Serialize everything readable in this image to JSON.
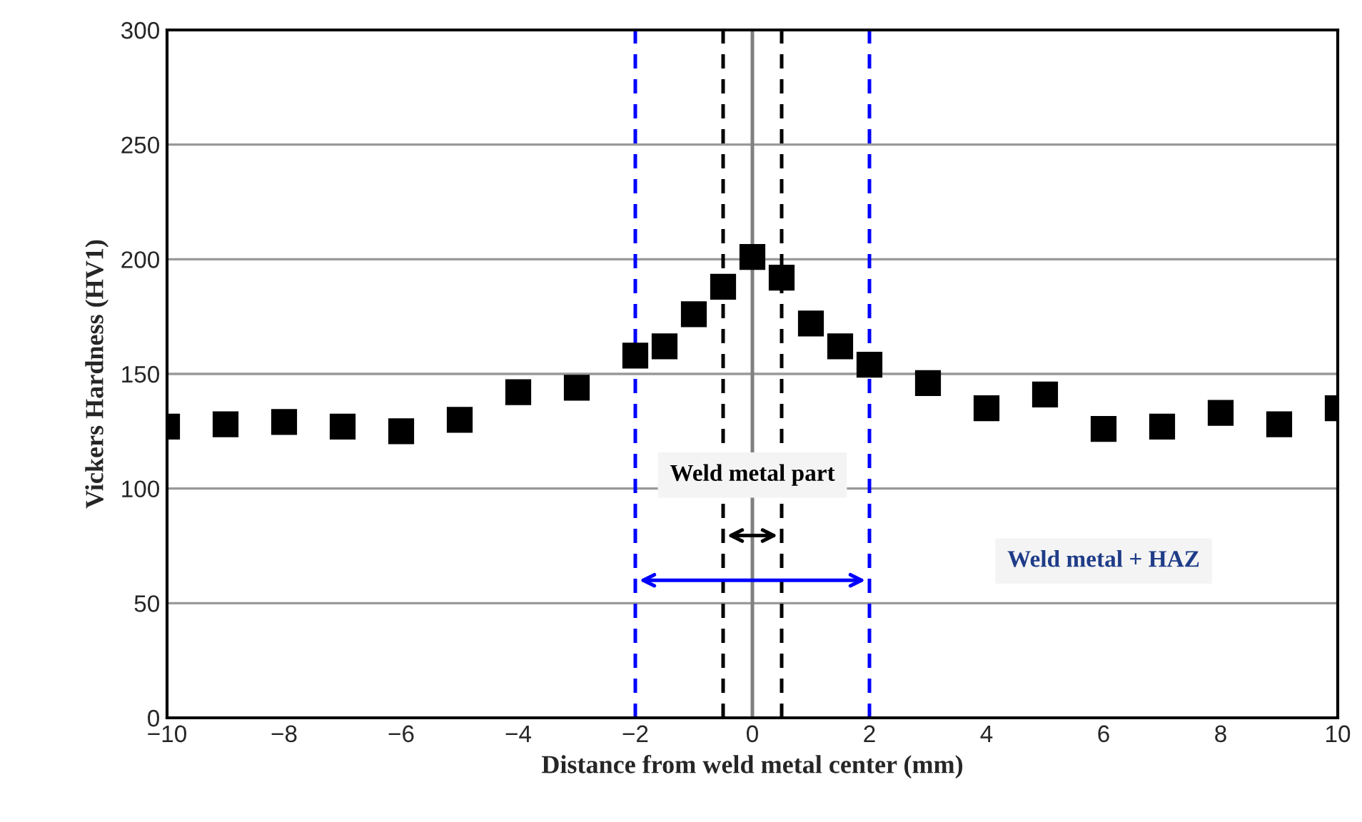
{
  "chart_data": {
    "type": "scatter",
    "xlabel": "Distance from weld metal center (mm)",
    "ylabel": "Vickers Hardness (HV1)",
    "x": [
      -10,
      -9,
      -8,
      -7,
      -6,
      -5,
      -4,
      -3,
      -2,
      -1.5,
      -1,
      -0.5,
      0,
      0.5,
      1,
      1.5,
      2,
      3,
      4,
      5,
      6,
      7,
      8,
      9,
      10
    ],
    "series": [
      {
        "color": "#000000",
        "values": [
          127,
          128,
          129,
          127,
          125,
          130,
          142,
          144,
          158,
          162,
          176,
          188,
          201,
          192,
          172,
          162,
          154,
          146,
          135,
          141,
          126,
          127,
          133,
          128,
          135
        ]
      }
    ],
    "marker": "square",
    "xlim": [
      -10,
      10
    ],
    "xticks": [
      {
        "value": -10,
        "label": "−10"
      },
      {
        "value": -8,
        "label": "−8"
      },
      {
        "value": -6,
        "label": "−6"
      },
      {
        "value": -4,
        "label": "−4"
      },
      {
        "value": -2,
        "label": "−2"
      },
      0,
      2,
      4,
      6,
      8,
      10
    ],
    "ylim": [
      0,
      300
    ],
    "yticks": [
      0,
      50,
      100,
      150,
      200,
      250,
      300
    ],
    "grid": "y",
    "ref_lines": [
      {
        "axis": "x",
        "value": 0,
        "color": "#808080",
        "line_style": "solid"
      },
      {
        "axis": "x",
        "value": -0.5,
        "color": "#000000",
        "line_style": "dashed"
      },
      {
        "axis": "x",
        "value": 0.5,
        "color": "#000000",
        "line_style": "dashed"
      },
      {
        "axis": "x",
        "value": -2,
        "color": "#0000ff",
        "line_style": "dashed"
      },
      {
        "axis": "x",
        "value": 2,
        "color": "#0000ff",
        "line_style": "dashed"
      }
    ],
    "annotations": [
      "Weld metal part",
      "Weld metal + HAZ"
    ]
  }
}
